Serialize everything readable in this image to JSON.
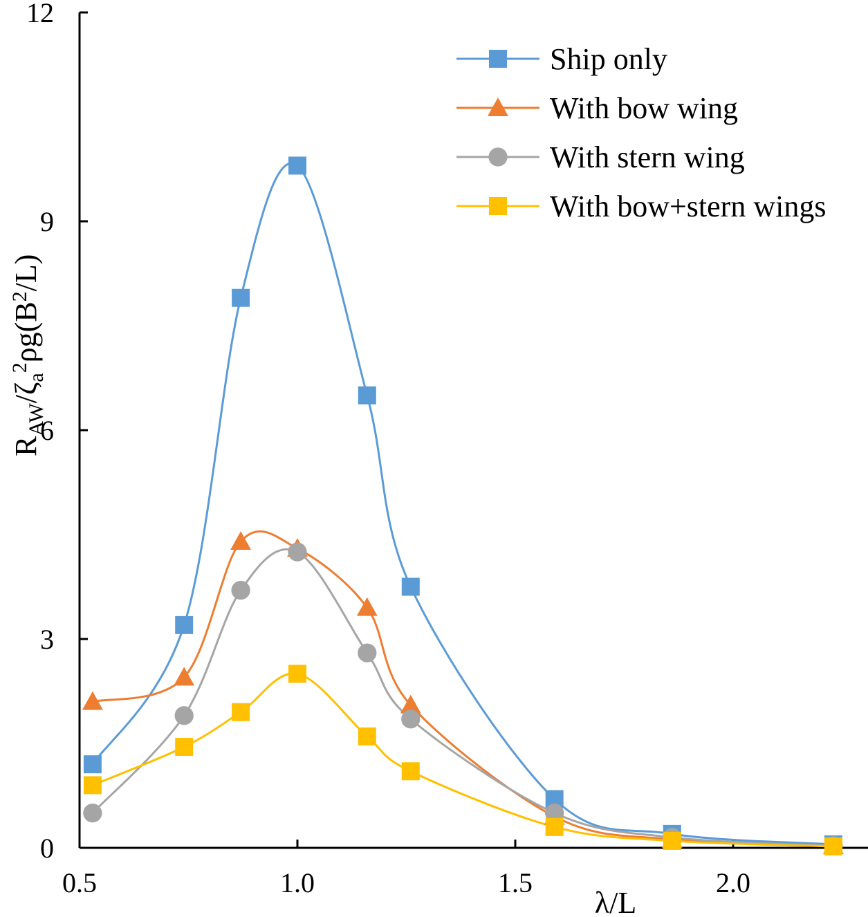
{
  "chart_data": {
    "type": "line",
    "title": "",
    "xlabel": "λ/L",
    "ylabel_parts": {
      "r": "R",
      "aw": "AW",
      "slash_zeta": "/ζ",
      "a": "a",
      "two": "2",
      "rho_g": "ρg(B",
      "two_b": "2",
      "over_l": "/L)"
    },
    "xlim": [
      0.5,
      2.3
    ],
    "ylim": [
      0,
      12
    ],
    "x_ticks": [
      {
        "value": 0.5,
        "label": "0.5"
      },
      {
        "value": 1.0,
        "label": "1.0"
      },
      {
        "value": 1.5,
        "label": "1.5"
      },
      {
        "value": 2.0,
        "label": "2.0"
      }
    ],
    "y_ticks": [
      {
        "value": 0,
        "label": "0"
      },
      {
        "value": 3,
        "label": "3"
      },
      {
        "value": 6,
        "label": "6"
      },
      {
        "value": 9,
        "label": "9"
      },
      {
        "value": 12,
        "label": "12"
      }
    ],
    "legend_position": "top-right",
    "series": [
      {
        "name": "Ship only",
        "color": "#5b9bd5",
        "marker": "square",
        "x": [
          0.53,
          0.74,
          0.87,
          1.0,
          1.16,
          1.26,
          1.59,
          1.86,
          2.23
        ],
        "y": [
          1.2,
          3.2,
          7.9,
          9.8,
          6.5,
          3.75,
          0.7,
          0.2,
          0.05
        ]
      },
      {
        "name": "With bow wing",
        "color": "#ed7d31",
        "marker": "triangle",
        "x": [
          0.53,
          0.74,
          0.87,
          1.0,
          1.16,
          1.26,
          1.59,
          1.86,
          2.23
        ],
        "y": [
          2.1,
          2.45,
          4.4,
          4.3,
          3.45,
          2.05,
          0.45,
          0.12,
          0.03
        ]
      },
      {
        "name": "With stern wing",
        "color": "#a5a5a5",
        "marker": "circle",
        "x": [
          0.53,
          0.74,
          0.87,
          1.0,
          1.16,
          1.26,
          1.59,
          1.86,
          2.23
        ],
        "y": [
          0.5,
          1.9,
          3.7,
          4.25,
          2.8,
          1.85,
          0.5,
          0.15,
          0.03
        ]
      },
      {
        "name": "With bow+stern wings",
        "color": "#ffc000",
        "marker": "square",
        "x": [
          0.53,
          0.74,
          0.87,
          1.0,
          1.16,
          1.26,
          1.59,
          1.86,
          2.23
        ],
        "y": [
          0.9,
          1.45,
          1.95,
          2.5,
          1.6,
          1.1,
          0.3,
          0.1,
          0.02
        ]
      }
    ]
  }
}
